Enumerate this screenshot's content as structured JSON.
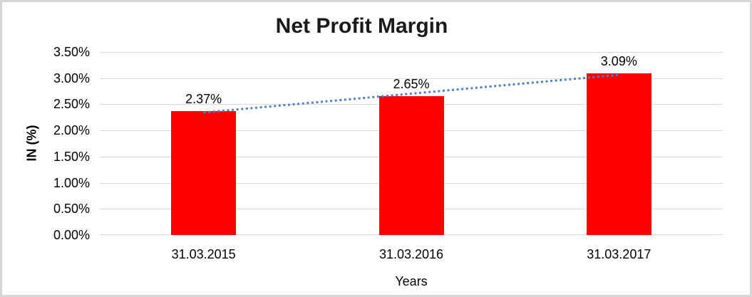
{
  "frame": {
    "background": "#FFFFFF",
    "border_color": "#D5D5D5"
  },
  "chart_data": {
    "type": "bar",
    "title": "Net Profit Margin",
    "categories": [
      "31.03.2015",
      "31.03.2016",
      "31.03.2017"
    ],
    "values": [
      2.37,
      2.65,
      3.09
    ],
    "data_labels": [
      "2.37%",
      "2.65%",
      "3.09%"
    ],
    "xlabel": "Years",
    "ylabel": "IN (%)",
    "ylim": [
      0,
      3.5
    ],
    "ytick_values": [
      0,
      0.5,
      1,
      1.5,
      2,
      2.5,
      3,
      3.5
    ],
    "ytick_labels": [
      "0.00%",
      "0.50%",
      "1.00%",
      "1.50%",
      "2.00%",
      "2.50%",
      "3.00%",
      "3.50%"
    ],
    "grid": true,
    "legend": "none",
    "bar_color": "#FF0000",
    "gridline_color": "#D9D9D9",
    "label_color": "#000000",
    "title_color": "#1A1A1A",
    "trendline": {
      "type": "linear",
      "style": "dotted",
      "color": "#4F81BD"
    }
  }
}
